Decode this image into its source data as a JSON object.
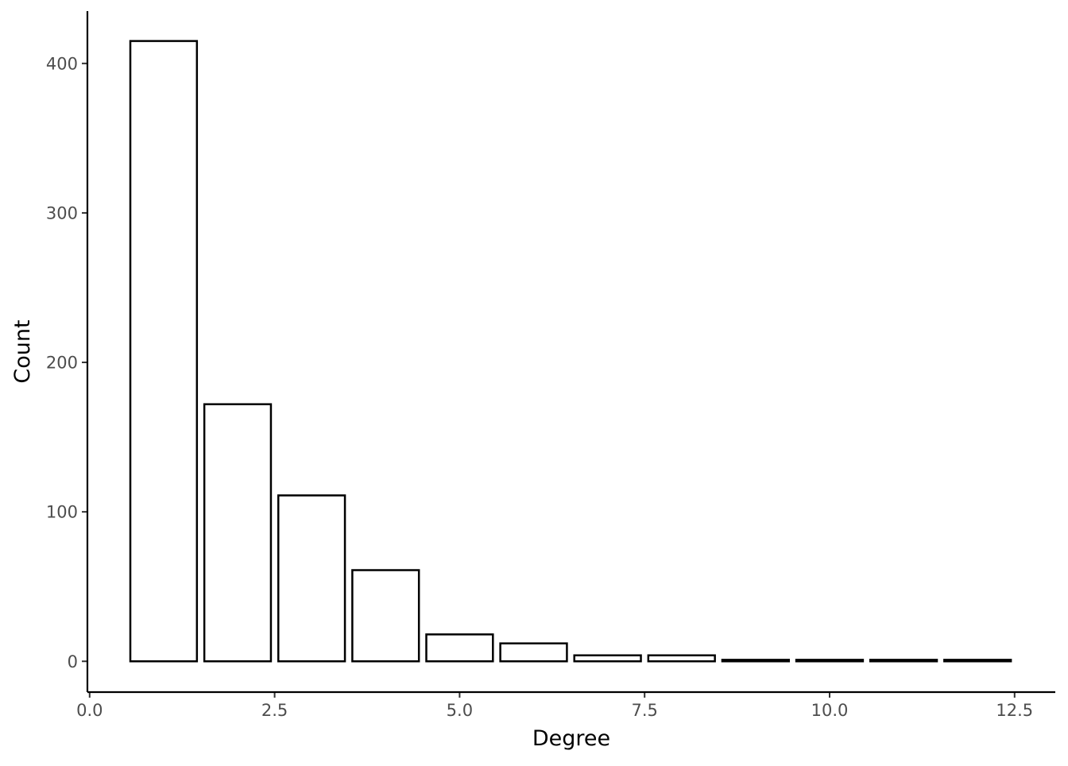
{
  "chart_data": {
    "type": "bar",
    "title": "",
    "xlabel": "Degree",
    "ylabel": "Count",
    "x": [
      1,
      2,
      3,
      4,
      5,
      6,
      7,
      8,
      9,
      10,
      11,
      12
    ],
    "values": [
      415,
      172,
      111,
      61,
      18,
      12,
      4,
      4,
      1,
      1,
      1,
      1
    ],
    "xlim": [
      -0.03,
      13.05
    ],
    "ylim": [
      -20.6,
      435
    ],
    "xticks": [
      0.0,
      2.5,
      5.0,
      7.5,
      10.0,
      12.5
    ],
    "xtick_labels": [
      "0.0",
      "2.5",
      "5.0",
      "7.5",
      "10.0",
      "12.5"
    ],
    "yticks": [
      0,
      100,
      200,
      300,
      400
    ],
    "ytick_labels": [
      "0",
      "100",
      "200",
      "300",
      "400"
    ],
    "bar_width": 0.9,
    "grid": false,
    "legend": "none",
    "colors": {
      "bar_fill": "#ffffff",
      "bar_stroke": "#000000",
      "axis": "#000000",
      "tick_label": "#4d4d4d"
    }
  }
}
